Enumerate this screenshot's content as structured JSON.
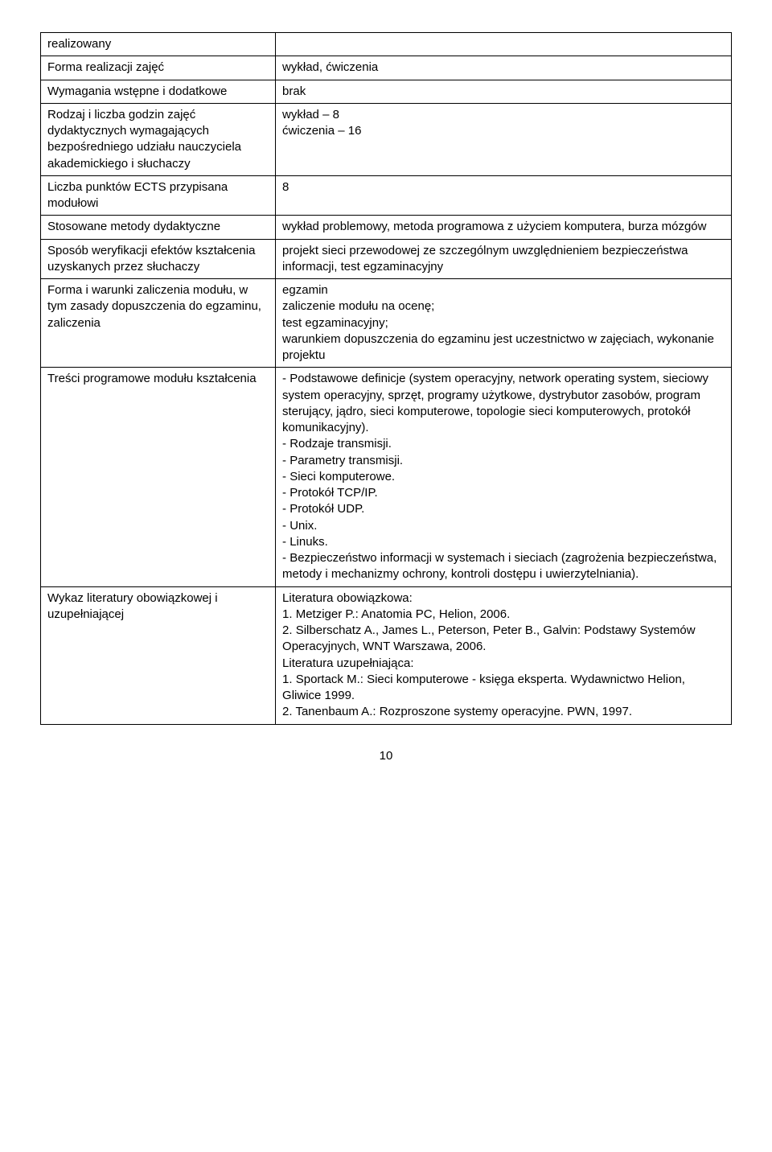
{
  "rows": [
    {
      "left": "realizowany",
      "right": ""
    },
    {
      "left": "Forma realizacji zajęć",
      "right": "wykład, ćwiczenia"
    },
    {
      "left": "Wymagania wstępne i dodatkowe",
      "right": "brak"
    },
    {
      "left": "Rodzaj i liczba godzin zajęć dydaktycznych wymagających bezpośredniego udziału nauczyciela akademickiego i słuchaczy",
      "right": "wykład – 8\nćwiczenia – 16"
    },
    {
      "left": "Liczba punktów ECTS przypisana modułowi",
      "right": "8"
    },
    {
      "left": "Stosowane metody dydaktyczne",
      "right": "wykład problemowy, metoda programowa z użyciem komputera, burza mózgów"
    },
    {
      "left": "Sposób weryfikacji efektów kształcenia uzyskanych przez słuchaczy",
      "right": "projekt sieci przewodowej ze szczególnym uwzględnieniem bezpieczeństwa informacji, test egzaminacyjny"
    },
    {
      "left": "Forma i warunki zaliczenia modułu, w tym zasady dopuszczenia do egzaminu, zaliczenia",
      "right": "egzamin\nzaliczenie modułu na ocenę;\ntest egzaminacyjny;\nwarunkiem dopuszczenia do egzaminu jest uczestnictwo w zajęciach, wykonanie projektu"
    },
    {
      "left": "Treści programowe modułu kształcenia",
      "right": "- Podstawowe definicje (system operacyjny, network operating system, sieciowy system operacyjny, sprzęt, programy użytkowe, dystrybutor zasobów, program sterujący, jądro, sieci komputerowe, topologie sieci komputerowych, protokół komunikacyjny).\n- Rodzaje transmisji.\n- Parametry transmisji.\n- Sieci komputerowe.\n- Protokół TCP/IP.\n- Protokół UDP.\n- Unix.\n- Linuks.\n- Bezpieczeństwo informacji w systemach i sieciach (zagrożenia bezpieczeństwa, metody i mechanizmy ochrony, kontroli dostępu i uwierzytelniania)."
    },
    {
      "left": "Wykaz literatury obowiązkowej i uzupełniającej",
      "right": "Literatura obowiązkowa:\n1. Metziger P.: Anatomia PC, Helion, 2006.\n2. Silberschatz A., James L., Peterson, Peter B., Galvin: Podstawy Systemów Operacyjnych, WNT Warszawa, 2006.\nLiteratura uzupełniająca:\n1. Sportack M.: Sieci komputerowe - księga eksperta. Wydawnictwo Helion, Gliwice 1999.\n2. Tanenbaum A.: Rozproszone systemy operacyjne. PWN, 1997."
    }
  ],
  "page_number": "10"
}
